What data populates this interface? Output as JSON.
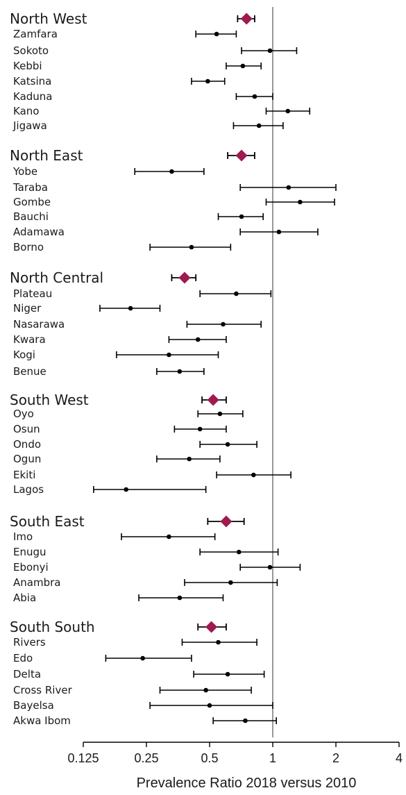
{
  "chart_data": {
    "type": "forest",
    "xlabel": "Prevalence Ratio 2018 versus 2010",
    "xscale": "log2",
    "xlim": [
      0.125,
      4
    ],
    "xticks": [
      {
        "value": 0.125,
        "label": "0.125"
      },
      {
        "value": 0.25,
        "label": "0.25"
      },
      {
        "value": 0.5,
        "label": "0.5"
      },
      {
        "value": 1,
        "label": "1"
      },
      {
        "value": 2,
        "label": "2"
      },
      {
        "value": 4,
        "label": "4"
      }
    ],
    "reference_line": 1,
    "colors": {
      "region_marker": "#9e1a4f",
      "state_marker": "#000000",
      "axis": "#000000",
      "reference": "#666666"
    },
    "groups": [
      {
        "region": "North West",
        "estimate": 0.75,
        "ci": [
          0.68,
          0.82
        ],
        "states": [
          {
            "name": "Zamfara",
            "estimate": 0.54,
            "ci": [
              0.43,
              0.67
            ]
          },
          {
            "name": "Sokoto",
            "estimate": 0.97,
            "ci": [
              0.71,
              1.3
            ]
          },
          {
            "name": "Kebbi",
            "estimate": 0.72,
            "ci": [
              0.6,
              0.88
            ]
          },
          {
            "name": "Katsina",
            "estimate": 0.49,
            "ci": [
              0.41,
              0.59
            ]
          },
          {
            "name": "Kaduna",
            "estimate": 0.82,
            "ci": [
              0.67,
              1.0
            ]
          },
          {
            "name": "Kano",
            "estimate": 1.18,
            "ci": [
              0.93,
              1.5
            ]
          },
          {
            "name": "Jigawa",
            "estimate": 0.86,
            "ci": [
              0.65,
              1.12
            ]
          }
        ]
      },
      {
        "region": "North East",
        "estimate": 0.71,
        "ci": [
          0.61,
          0.82
        ]
      },
      {
        "region": "_states_North East",
        "states": [
          {
            "name": "Yobe",
            "estimate": 0.33,
            "ci": [
              0.22,
              0.47
            ]
          },
          {
            "name": "Taraba",
            "estimate": 1.19,
            "ci": [
              0.7,
              2.0
            ]
          },
          {
            "name": "Gombe",
            "estimate": 1.35,
            "ci": [
              0.93,
              1.97
            ]
          },
          {
            "name": "Bauchi",
            "estimate": 0.71,
            "ci": [
              0.55,
              0.9
            ]
          },
          {
            "name": "Adamawa",
            "estimate": 1.07,
            "ci": [
              0.7,
              1.64
            ]
          },
          {
            "name": "Borno",
            "estimate": 0.41,
            "ci": [
              0.26,
              0.63
            ]
          }
        ]
      },
      {
        "region": "North Central",
        "estimate": 0.38,
        "ci": [
          0.33,
          0.43
        ]
      },
      {
        "region": "_states_North Central",
        "states": [
          {
            "name": "Plateau",
            "estimate": 0.67,
            "ci": [
              0.45,
              0.98
            ]
          },
          {
            "name": "Niger",
            "estimate": 0.21,
            "ci": [
              0.15,
              0.29
            ]
          },
          {
            "name": "Nasarawa",
            "estimate": 0.58,
            "ci": [
              0.39,
              0.88
            ]
          },
          {
            "name": "Kwara",
            "estimate": 0.44,
            "ci": [
              0.32,
              0.6
            ]
          },
          {
            "name": "Kogi",
            "estimate": 0.32,
            "ci": [
              0.18,
              0.55
            ]
          },
          {
            "name": "Benue",
            "estimate": 0.36,
            "ci": [
              0.28,
              0.47
            ]
          }
        ]
      },
      {
        "region": "South West",
        "estimate": 0.52,
        "ci": [
          0.46,
          0.6
        ]
      },
      {
        "region": "_states_South West",
        "states": [
          {
            "name": "Oyo",
            "estimate": 0.56,
            "ci": [
              0.44,
              0.72
            ]
          },
          {
            "name": "Osun",
            "estimate": 0.45,
            "ci": [
              0.34,
              0.6
            ]
          },
          {
            "name": "Ondo",
            "estimate": 0.61,
            "ci": [
              0.45,
              0.84
            ]
          },
          {
            "name": "Ogun",
            "estimate": 0.4,
            "ci": [
              0.28,
              0.56
            ]
          },
          {
            "name": "Ekiti",
            "estimate": 0.81,
            "ci": [
              0.54,
              1.22
            ]
          },
          {
            "name": "Lagos",
            "estimate": 0.2,
            "ci": [
              0.14,
              0.48
            ]
          }
        ]
      },
      {
        "region": "South East",
        "estimate": 0.6,
        "ci": [
          0.49,
          0.73
        ]
      },
      {
        "region": "_states_South East",
        "states": [
          {
            "name": "Imo",
            "estimate": 0.32,
            "ci": [
              0.19,
              0.53
            ]
          },
          {
            "name": "Enugu",
            "estimate": 0.69,
            "ci": [
              0.45,
              1.06
            ]
          },
          {
            "name": "Ebonyi",
            "estimate": 0.97,
            "ci": [
              0.7,
              1.35
            ]
          },
          {
            "name": "Anambra",
            "estimate": 0.63,
            "ci": [
              0.38,
              1.05
            ]
          },
          {
            "name": "Abia",
            "estimate": 0.36,
            "ci": [
              0.23,
              0.58
            ]
          }
        ]
      },
      {
        "region": "South South",
        "estimate": 0.51,
        "ci": [
          0.44,
          0.6
        ]
      },
      {
        "region": "_states_South South",
        "states": [
          {
            "name": "Rivers",
            "estimate": 0.55,
            "ci": [
              0.37,
              0.84
            ]
          },
          {
            "name": "Edo",
            "estimate": 0.24,
            "ci": [
              0.16,
              0.41
            ]
          },
          {
            "name": "Delta",
            "estimate": 0.61,
            "ci": [
              0.42,
              0.91
            ]
          },
          {
            "name": "Cross River",
            "estimate": 0.48,
            "ci": [
              0.29,
              0.79
            ]
          },
          {
            "name": "Bayelsa",
            "estimate": 0.5,
            "ci": [
              0.26,
              1.0
            ]
          },
          {
            "name": "Akwa Ibom",
            "estimate": 0.74,
            "ci": [
              0.52,
              1.04
            ]
          }
        ]
      }
    ]
  }
}
